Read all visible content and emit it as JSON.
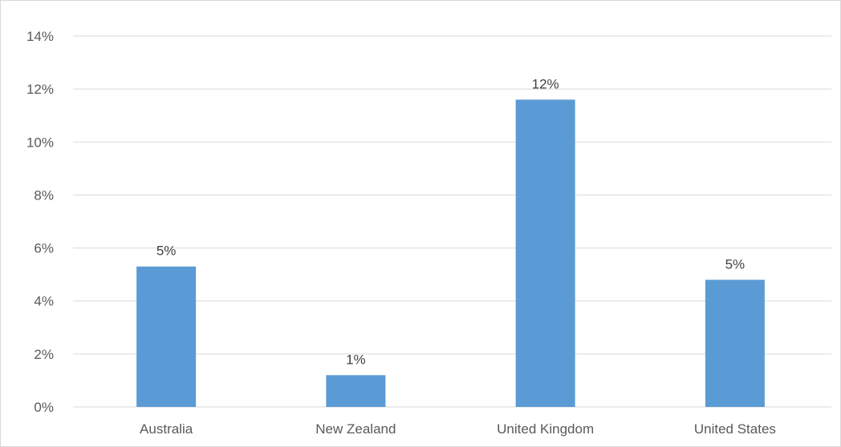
{
  "chart_data": {
    "type": "bar",
    "categories": [
      "Australia",
      "New Zealand",
      "United Kingdom",
      "United States"
    ],
    "values": [
      0.053,
      0.012,
      0.116,
      0.048
    ],
    "data_labels": [
      "5%",
      "1%",
      "12%",
      "5%"
    ],
    "title": "",
    "xlabel": "",
    "ylabel": "",
    "ylim": [
      0,
      0.14
    ],
    "yticks": [
      0,
      0.02,
      0.04,
      0.06,
      0.08,
      0.1,
      0.12,
      0.14
    ],
    "ytick_labels": [
      "0%",
      "2%",
      "4%",
      "6%",
      "8%",
      "10%",
      "12%",
      "14%"
    ],
    "grid": true,
    "legend": "none",
    "bar_color": "#5b9bd5"
  }
}
